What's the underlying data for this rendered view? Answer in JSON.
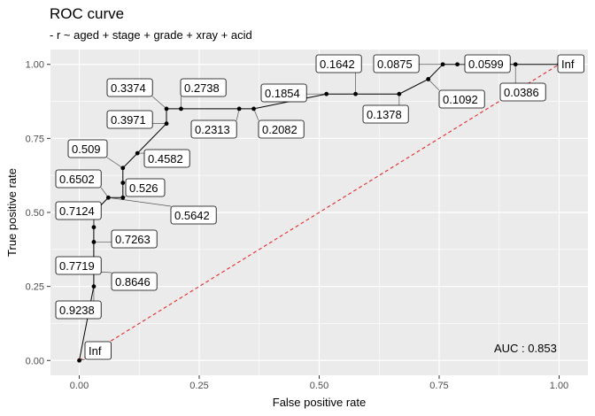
{
  "chart_data": {
    "type": "line",
    "title": "ROC curve",
    "subtitle": "- r ~ aged + stage + grade + xray + acid",
    "xlabel": "False positive rate",
    "ylabel": "True positive rate",
    "xlim": [
      -0.06,
      1.06
    ],
    "ylim": [
      -0.05,
      1.05
    ],
    "xticks": [
      0.0,
      0.25,
      0.5,
      0.75,
      1.0
    ],
    "yticks": [
      0.0,
      0.25,
      0.5,
      0.75,
      1.0
    ],
    "xtick_labels": [
      "0.00",
      "0.25",
      "0.50",
      "0.75",
      "1.00"
    ],
    "ytick_labels": [
      "0.00",
      "0.25",
      "0.50",
      "0.75",
      "1.00"
    ],
    "grid": true,
    "auc_label": "AUC : 0.853",
    "diagonal": {
      "from": [
        0,
        0
      ],
      "to": [
        1,
        1
      ],
      "color": "#e41a1c",
      "style": "dashed"
    },
    "series": [
      {
        "x": [
          0,
          0.0303,
          0.0303,
          0.0303,
          0.0303,
          0.0303,
          0.0303,
          0.0606,
          0.0909,
          0.0909,
          0.0909,
          0.1212,
          0.1818,
          0.1818,
          0.2121,
          0.3333,
          0.3636,
          0.5152,
          0.5758,
          0.6667,
          0.7273,
          0.7576,
          0.7879,
          0.9091,
          1.0
        ],
        "y": [
          0,
          0.25,
          0.3,
          0.4,
          0.45,
          0.5,
          0.5,
          0.55,
          0.55,
          0.6,
          0.65,
          0.7,
          0.8,
          0.85,
          0.85,
          0.85,
          0.85,
          0.9,
          0.9,
          0.9,
          0.95,
          1.0,
          1.0,
          1.0,
          1.0
        ],
        "color": "#000000"
      }
    ],
    "point_labels": [
      {
        "text": "Inf",
        "x": 0,
        "y": 0
      },
      {
        "text": "0.9238",
        "x": 0.0303,
        "y": 0.25
      },
      {
        "text": "0.8646",
        "x": 0.0303,
        "y": 0.3
      },
      {
        "text": "0.7719",
        "x": 0.0303,
        "y": 0.3
      },
      {
        "text": "0.7263",
        "x": 0.0303,
        "y": 0.4
      },
      {
        "text": "0.7124",
        "x": 0.0303,
        "y": 0.45
      },
      {
        "text": "0.6502",
        "x": 0.0606,
        "y": 0.55
      },
      {
        "text": "0.5642",
        "x": 0.0606,
        "y": 0.55
      },
      {
        "text": "0.526",
        "x": 0.0909,
        "y": 0.55
      },
      {
        "text": "0.509",
        "x": 0.0909,
        "y": 0.65
      },
      {
        "text": "0.4582",
        "x": 0.1212,
        "y": 0.7
      },
      {
        "text": "0.3971",
        "x": 0.1818,
        "y": 0.8
      },
      {
        "text": "0.3374",
        "x": 0.1818,
        "y": 0.85
      },
      {
        "text": "0.2738",
        "x": 0.2121,
        "y": 0.85
      },
      {
        "text": "0.2313",
        "x": 0.3333,
        "y": 0.85
      },
      {
        "text": "0.2082",
        "x": 0.3636,
        "y": 0.85
      },
      {
        "text": "0.1854",
        "x": 0.5152,
        "y": 0.9
      },
      {
        "text": "0.1642",
        "x": 0.5758,
        "y": 0.9
      },
      {
        "text": "0.1378",
        "x": 0.6667,
        "y": 0.9
      },
      {
        "text": "0.1092",
        "x": 0.7273,
        "y": 0.95
      },
      {
        "text": "0.0875",
        "x": 0.7576,
        "y": 1.0
      },
      {
        "text": "0.0599",
        "x": 0.7879,
        "y": 1.0
      },
      {
        "text": "0.0386",
        "x": 0.9091,
        "y": 1.0
      },
      {
        "text": "Inf",
        "x": 1.0,
        "y": 1.0
      }
    ]
  }
}
